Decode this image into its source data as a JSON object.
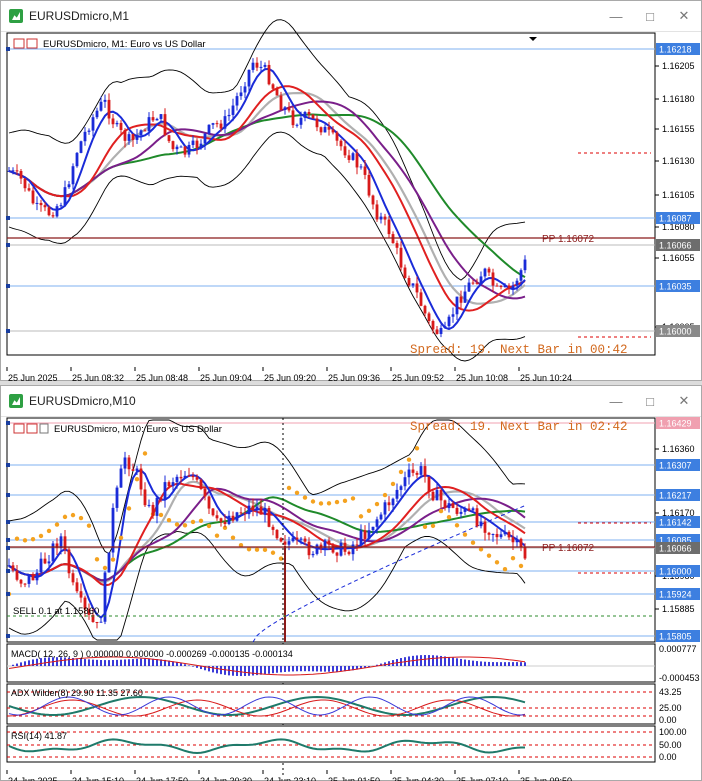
{
  "window1": {
    "title": "EURUSDmicro,M1",
    "chart_label": "EURUSDmicro, M1:  Euro vs US Dollar",
    "pp_label": "PP 1.16072",
    "spread_label": "Spread: 19. Next Bar in 00:42",
    "price_ticks": [
      "1.16205",
      "1.16180",
      "1.16155",
      "1.16130",
      "1.16105",
      "1.16080",
      "1.16055",
      "1.16005"
    ],
    "price_badges": [
      "1.16218",
      "1.16087",
      "1.16066",
      "1.16035",
      "1.16000"
    ],
    "time_ticks": [
      "25 Jun 2025",
      "25 Jun 08:32",
      "25 Jun 08:48",
      "25 Jun 09:04",
      "25 Jun 09:20",
      "25 Jun 09:36",
      "25 Jun 09:52",
      "25 Jun 10:08",
      "25 Jun 10:24"
    ]
  },
  "window2": {
    "title": "EURUSDmicro,M10",
    "chart_label": "EURUSDmicro, M10:  Euro vs US Dollar",
    "pp_label": "PP 1.16072",
    "spread_label": "Spread: 19. Next Bar in 02:42",
    "sell_label": "SELL 0.1 at 1.15860",
    "price_ticks": [
      "1.16360",
      "1.16170",
      "1.15980",
      "1.15885"
    ],
    "price_badges": [
      "1.16429",
      "1.16307",
      "1.16217",
      "1.16142",
      "1.16085",
      "1.16066",
      "1.16000",
      "1.15924",
      "1.15805"
    ],
    "macd_label": "MACD( 12, 26, 9 ) 0.000000 0.000000 -0.000269 -0.000135 -0.000134",
    "macd_ticks": [
      "0.000777",
      "-0.000453"
    ],
    "adx_label": "ADX Wilder(8) 29.90 11.35 27.60",
    "adx_ticks": [
      "43.25",
      "25.00",
      "0.00"
    ],
    "rsi_label": "RSI(14) 41.87",
    "rsi_ticks": [
      "100.00",
      "50.00",
      "0.00"
    ],
    "time_ticks": [
      "24 Jun 2025",
      "24 Jun 15:10",
      "24 Jun 17:50",
      "24 Jun 20:30",
      "24 Jun 23:10",
      "25 Jun 01:50",
      "25 Jun 04:30",
      "25 Jun 07:10",
      "25 Jun 09:50"
    ]
  },
  "colors": {
    "bull": "#1a2bd8",
    "bear": "#d81a1a",
    "ma_red": "#e02020",
    "ma_purple": "#7a1f8a",
    "ma_green": "#1f8a2a",
    "ma_gray": "#b0b0b0",
    "badge": "#3d7fe0",
    "pp": "#8b1a1a",
    "spread": "#d2691e",
    "sar": "#f4a21f"
  }
}
